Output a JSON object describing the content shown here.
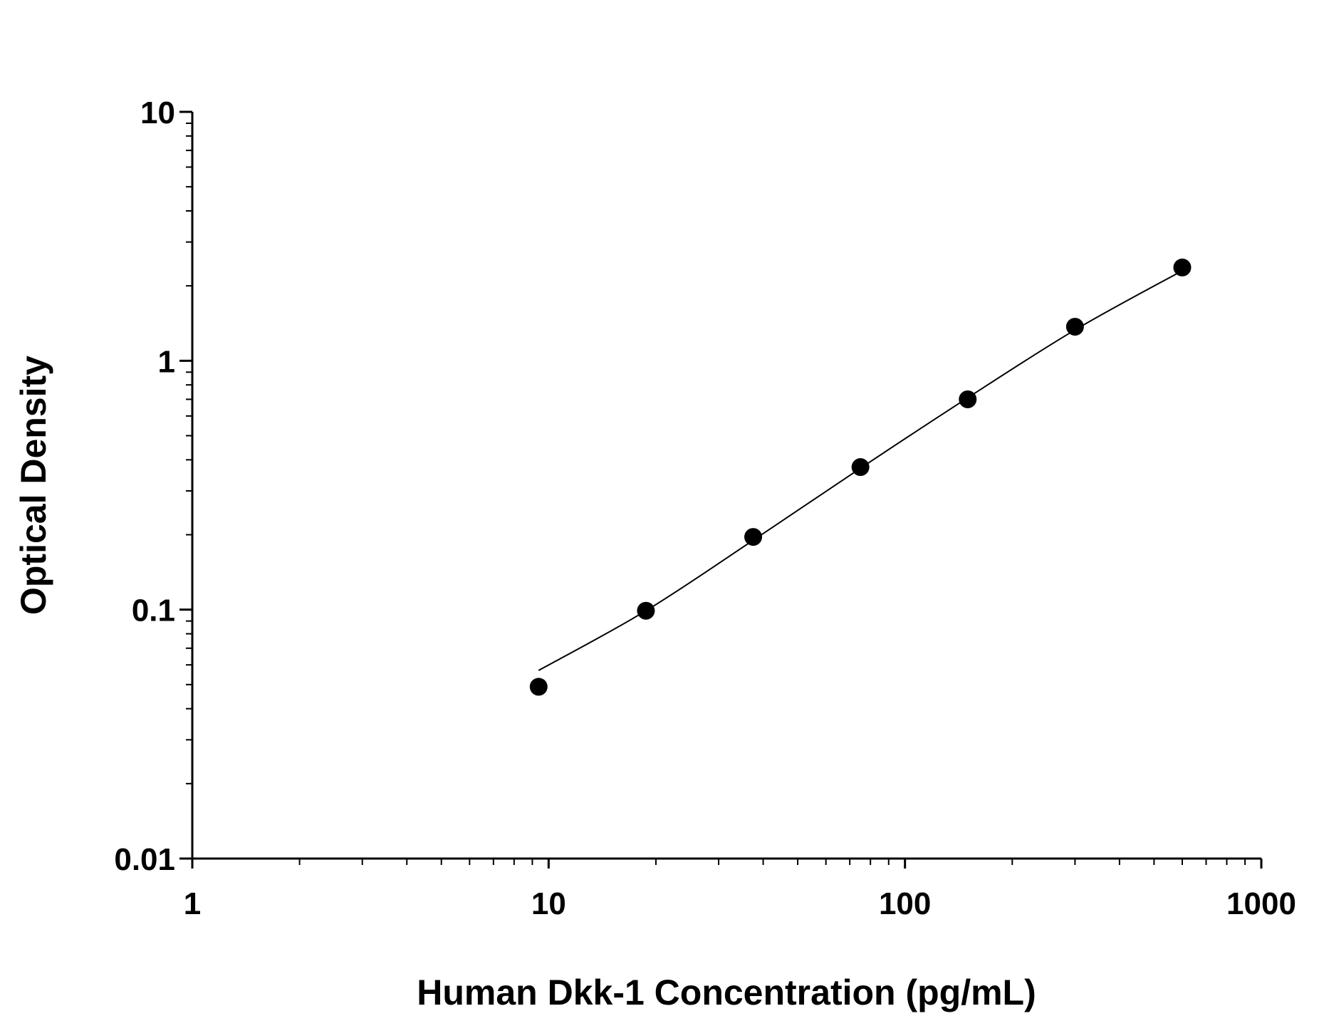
{
  "chart_data": {
    "type": "scatter",
    "title": "",
    "xlabel": "Human Dkk-1 Concentration (pg/mL)",
    "ylabel": "Optical Density",
    "xscale": "log",
    "yscale": "log",
    "xlim": [
      1,
      1000
    ],
    "ylim": [
      0.01,
      10
    ],
    "xticks": [
      "1",
      "10",
      "100",
      "1000"
    ],
    "yticks": [
      "0.01",
      "0.1",
      "1",
      "10"
    ],
    "grid": false,
    "series": [
      {
        "x": [
          9.375,
          18.75,
          37.5,
          75,
          150,
          300,
          600
        ],
        "y": [
          0.049,
          0.099,
          0.196,
          0.374,
          0.7,
          1.37,
          2.37
        ],
        "marker": "filled-circle",
        "color": "#000000"
      }
    ],
    "fit_curve": {
      "x": [
        9.375,
        18.75,
        37.5,
        75,
        150,
        300,
        600
      ],
      "y": [
        0.057,
        0.099,
        0.19,
        0.37,
        0.71,
        1.33,
        2.3
      ],
      "color": "#000000"
    }
  }
}
